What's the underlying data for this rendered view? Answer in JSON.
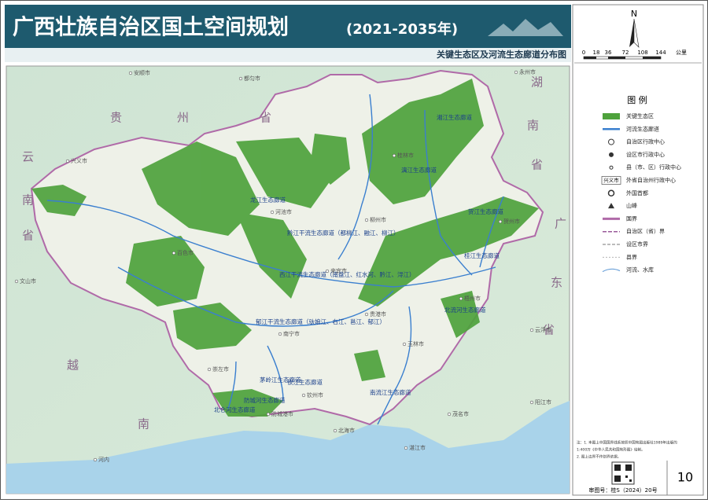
{
  "header": {
    "title": "广西壮族自治区国土空间规划",
    "years": "(2021-2035年)",
    "subtitle": "关键生态区及河流生态廊道分布图"
  },
  "scale_bar": {
    "north": "N",
    "labels": [
      "0",
      "18",
      "36",
      "72",
      "108",
      "144",
      "公里"
    ]
  },
  "legend": {
    "title": "图 例",
    "items": [
      "关键生态区",
      "河流生态廊道",
      "自治区行政中心",
      "设区市行政中心",
      "县（市、区）行政中心",
      "外省自治州行政中心",
      "外国首都",
      "山峰",
      "国界",
      "自治区（省）界",
      "设区市界",
      "县界",
      "河流、水库"
    ],
    "sample_label": "兴义市"
  },
  "map": {
    "provinces": [
      "贵",
      "州",
      "省",
      "云",
      "南",
      "省",
      "湖",
      "南",
      "省",
      "广",
      "东",
      "省",
      "越",
      "南"
    ],
    "cities": [
      "安顺市",
      "都匀市",
      "永州市",
      "兴义市",
      "文山市",
      "河内",
      "云浮市",
      "阳江市",
      "茂名市",
      "湛江市",
      "南宁市",
      "河池市",
      "百色市",
      "来宾市",
      "柳州市",
      "桂林市",
      "贺州市",
      "梧州市",
      "贵港市",
      "玉林市",
      "钦州市",
      "北海市",
      "防城港市",
      "崇左市"
    ],
    "corridors": [
      "龙江生态廊道",
      "黔江干流生态廊道（都柳江、融江、柳江）",
      "西江干流生态廊道（南盘江、红水河、黔江、浔江）",
      "郁江干流生态廊道（驮娘江、右江、邕江、郁江）",
      "漓江生态廊道",
      "湘江生态廊道",
      "桂江生态廊道",
      "贺江生态廊道",
      "北流河生态廊道",
      "南流江生态廊道",
      "钦江生态廊道",
      "茅岭江生态廊道",
      "防城河生态廊道",
      "北仑河生态廊道"
    ]
  },
  "notes": [
    "注：1. 本图上中国国界线系按照中国地图出版社1989年出版的",
    "1:400万《中华人民共和国地形图》绘制。",
    "2. 图上边界不作划界依据。"
  ],
  "review_number": "审图号：桂S（2024）20号",
  "page_number": "10"
}
